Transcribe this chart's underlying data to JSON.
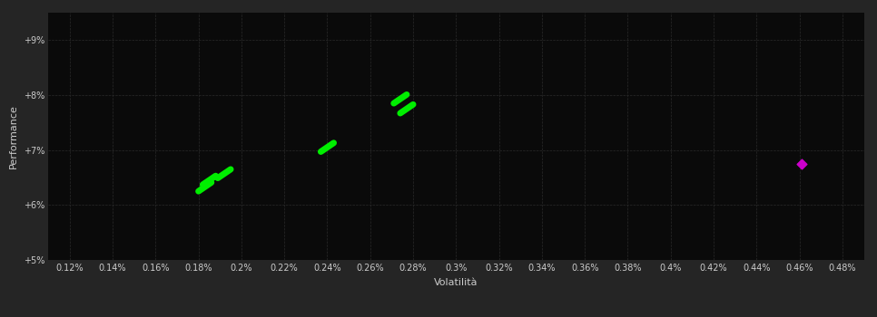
{
  "background_color": "#252525",
  "plot_bg_color": "#0a0a0a",
  "grid_color": "#2a2a2a",
  "xlabel": "Volatilità",
  "ylabel": "Performance",
  "xlim": [
    0.11,
    0.49
  ],
  "ylim": [
    0.05,
    0.095
  ],
  "xticks": [
    0.12,
    0.14,
    0.16,
    0.18,
    0.2,
    0.22,
    0.24,
    0.26,
    0.28,
    0.3,
    0.32,
    0.34,
    0.36,
    0.38,
    0.4,
    0.42,
    0.44,
    0.46,
    0.48
  ],
  "xtick_labels": [
    "0.12%",
    "0.14%",
    "0.16%",
    "0.18%",
    "0.2%",
    "0.22%",
    "0.24%",
    "0.26%",
    "0.28%",
    "0.3%",
    "0.32%",
    "0.34%",
    "0.36%",
    "0.38%",
    "0.4%",
    "0.42%",
    "0.44%",
    "0.46%",
    "0.48%"
  ],
  "yticks": [
    0.05,
    0.06,
    0.07,
    0.08,
    0.09
  ],
  "ytick_labels": [
    "+5%",
    "+6%",
    "+7%",
    "+8%",
    "+9%"
  ],
  "green_points": [
    [
      0.185,
      0.0645
    ],
    [
      0.183,
      0.0633
    ],
    [
      0.192,
      0.0657
    ],
    [
      0.24,
      0.0705
    ],
    [
      0.274,
      0.0793
    ],
    [
      0.277,
      0.0775
    ]
  ],
  "magenta_points": [
    [
      0.461,
      0.0675
    ]
  ],
  "marker_style": "D",
  "point_size": 30,
  "tick_color": "#cccccc",
  "tick_fontsize": 7,
  "label_fontsize": 8,
  "label_color": "#cccccc",
  "figsize": [
    9.66,
    3.5
  ],
  "dpi": 100
}
